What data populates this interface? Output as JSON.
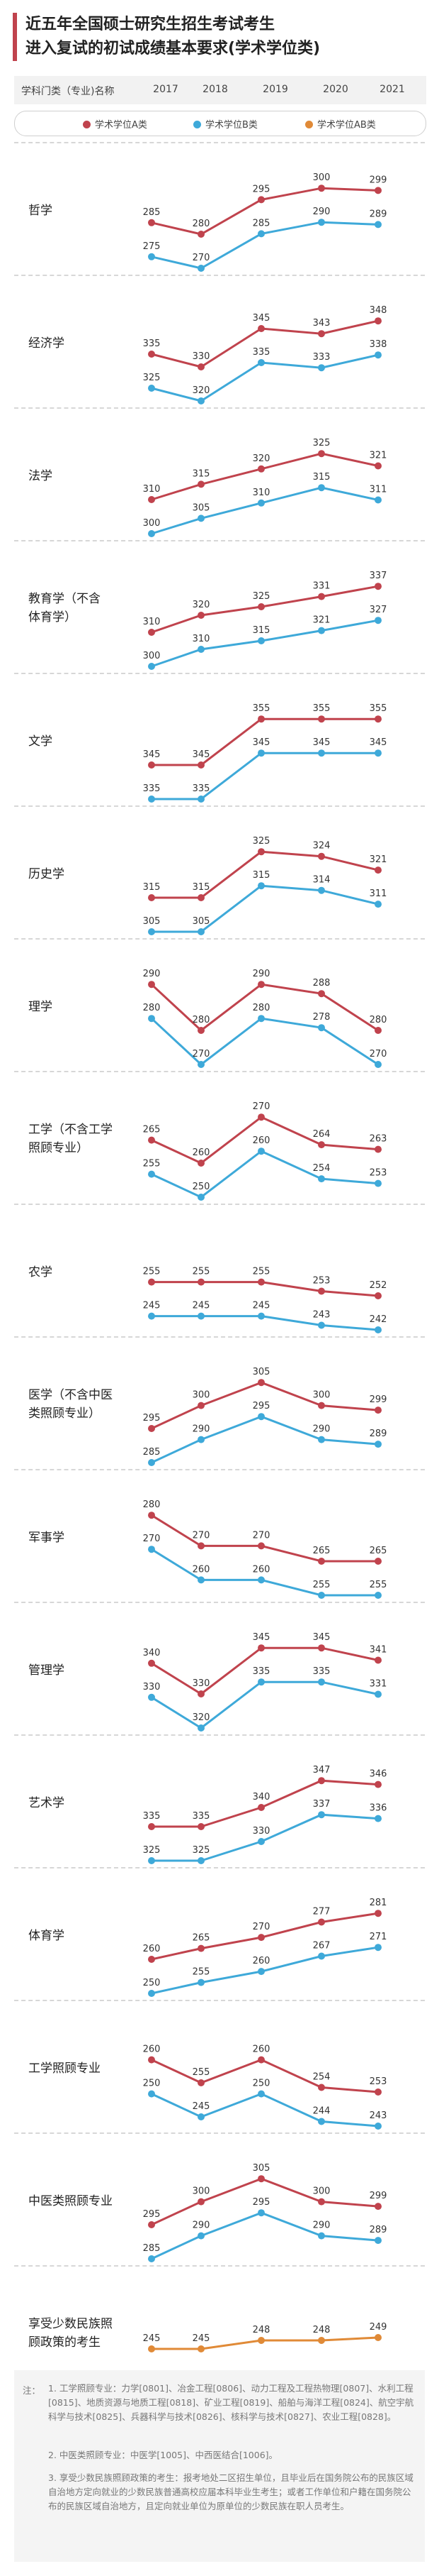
{
  "title": {
    "line1": "近五年全国硕士研究生招生考试考生",
    "line2": "进入复试的初试成绩基本要求(学术学位类)"
  },
  "header": {
    "category_label": "学科门类（专业)名称",
    "years": [
      "2017",
      "2018",
      "2019",
      "2020",
      "2021"
    ]
  },
  "legend": {
    "a": "学术学位A类",
    "b": "学术学位B类",
    "ab": "学术学位AB类"
  },
  "colors": {
    "a": "#c0434d",
    "b": "#3ea9d9",
    "ab": "#e08a37"
  },
  "chart_data": {
    "type": "line",
    "x": [
      "2017",
      "2018",
      "2019",
      "2020",
      "2021"
    ],
    "series_names": [
      "学术学位A类",
      "学术学位B类",
      "学术学位AB类"
    ],
    "categories": [
      {
        "label": "哲学",
        "a": [
          285,
          280,
          295,
          300,
          299
        ],
        "b": [
          275,
          270,
          285,
          290,
          289
        ]
      },
      {
        "label": "经济学",
        "a": [
          335,
          330,
          345,
          343,
          348
        ],
        "b": [
          325,
          320,
          335,
          333,
          338
        ]
      },
      {
        "label": "法学",
        "a": [
          310,
          315,
          320,
          325,
          321
        ],
        "b": [
          300,
          305,
          310,
          315,
          311
        ]
      },
      {
        "label": "教育学（不含体育学）",
        "label_lines": [
          "教育学（不含",
          "体育学）"
        ],
        "a": [
          310,
          320,
          325,
          331,
          337
        ],
        "b": [
          300,
          310,
          315,
          321,
          327
        ]
      },
      {
        "label": "文学",
        "a": [
          345,
          345,
          355,
          355,
          355
        ],
        "b": [
          335,
          335,
          345,
          345,
          345
        ]
      },
      {
        "label": "历史学",
        "a": [
          315,
          315,
          325,
          324,
          321
        ],
        "b": [
          305,
          305,
          315,
          314,
          311
        ]
      },
      {
        "label": "理学",
        "a": [
          290,
          280,
          290,
          288,
          280
        ],
        "b": [
          280,
          270,
          280,
          278,
          270
        ]
      },
      {
        "label": "工学（不含工学照顾专业）",
        "label_lines": [
          "工学（不含工学",
          "照顾专业）"
        ],
        "a": [
          265,
          260,
          270,
          264,
          263
        ],
        "b": [
          255,
          250,
          260,
          254,
          253
        ]
      },
      {
        "label": "农学",
        "a": [
          255,
          255,
          255,
          253,
          252
        ],
        "b": [
          245,
          245,
          245,
          243,
          242
        ]
      },
      {
        "label": "医学（不含中医类照顾专业）",
        "label_lines": [
          "医学（不含中医",
          "类照顾专业）"
        ],
        "a": [
          295,
          300,
          305,
          300,
          299
        ],
        "b": [
          285,
          290,
          295,
          290,
          289
        ]
      },
      {
        "label": "军事学",
        "a": [
          280,
          270,
          270,
          265,
          265
        ],
        "b": [
          270,
          260,
          260,
          255,
          255
        ]
      },
      {
        "label": "管理学",
        "a": [
          340,
          330,
          345,
          345,
          341
        ],
        "b": [
          330,
          320,
          335,
          335,
          331
        ]
      },
      {
        "label": "艺术学",
        "a": [
          335,
          335,
          340,
          347,
          346
        ],
        "b": [
          325,
          325,
          330,
          337,
          336
        ]
      },
      {
        "label": "体育学",
        "a": [
          260,
          265,
          270,
          277,
          281
        ],
        "b": [
          250,
          255,
          260,
          267,
          271
        ]
      },
      {
        "label": "工学照顾专业",
        "a": [
          260,
          255,
          260,
          254,
          253
        ],
        "b": [
          250,
          245,
          250,
          244,
          243
        ]
      },
      {
        "label": "中医类照顾专业",
        "a": [
          295,
          300,
          305,
          300,
          299
        ],
        "b": [
          285,
          290,
          295,
          290,
          289
        ]
      },
      {
        "label": "享受少数民族照顾政策的考生",
        "label_lines": [
          "享受少数民族照",
          "顾政策的考生"
        ],
        "ab": [
          245,
          245,
          248,
          248,
          249
        ]
      }
    ]
  },
  "notes": {
    "label": "注：",
    "items": [
      "1. 工学照顾专业：力学[0801]、冶金工程[0806]、动力工程及工程热物理[0807]、水利工程[0815]、地质资源与地质工程[0818]、矿业工程[0819]、船舶与海洋工程[0824]、航空宇航科学与技术[0825]、兵器科学与技术[0826]、核科学与技术[0827]、农业工程[0828]。",
      "2. 中医类照顾专业：中医学[1005]、中西医结合[1006]。",
      "3. 享受少数民族照顾政策的考生：报考地处二区招生单位，且毕业后在国务院公布的民族区域自治地方定向就业的少数民族普通高校应届本科毕业生考生；或者工作单位和户籍在国务院公布的民族区域自治地方，且定向就业单位为原单位的少数民族在职人员考生。"
    ]
  }
}
